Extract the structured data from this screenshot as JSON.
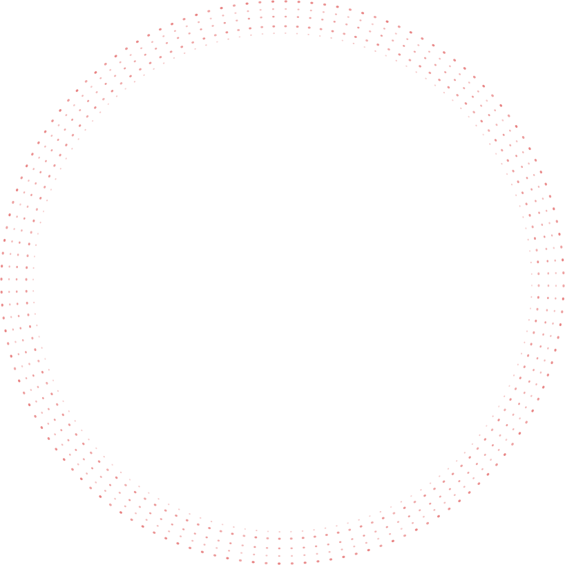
{
  "artwork": {
    "description_type": "decorative-dotted-concentric-rings",
    "dot_color": "#e05a5a",
    "background_color": "#ffffff",
    "ring_count": 5,
    "dots_per_ring": 136
  }
}
